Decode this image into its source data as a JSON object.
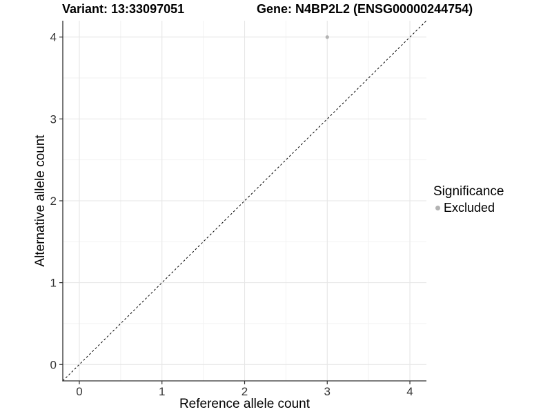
{
  "chart_data": {
    "type": "scatter",
    "title_left": "Variant: 13:33097051",
    "title_right": "Gene: N4BP2L2 (ENSG00000244754)",
    "xlabel": "Reference allele count",
    "ylabel": "Alternative allele count",
    "xlim": [
      -0.2,
      4.2
    ],
    "ylim": [
      -0.2,
      4.2
    ],
    "xticks": [
      0,
      1,
      2,
      3,
      4
    ],
    "yticks": [
      0,
      1,
      2,
      3,
      4
    ],
    "minor_grid_step": 0.5,
    "grid": "major-and-minor",
    "series": [
      {
        "name": "Excluded",
        "color": "#b3b3b3",
        "points": [
          {
            "x": 3,
            "y": 4
          }
        ]
      }
    ],
    "reference_line": {
      "kind": "identity",
      "slope": 1,
      "intercept": 0,
      "style": "dashed",
      "color": "#000000"
    },
    "legend": {
      "title": "Significance",
      "position": "right",
      "items": [
        {
          "label": "Excluded",
          "color": "#b3b3b3",
          "marker": "circle"
        }
      ]
    },
    "colors": {
      "background": "#ffffff",
      "grid_major": "#e6e6e6",
      "grid_minor": "#f2f2f2",
      "axis_line": "#2f2f2f",
      "tick_label": "#333333",
      "point": "#b3b3b3"
    }
  }
}
